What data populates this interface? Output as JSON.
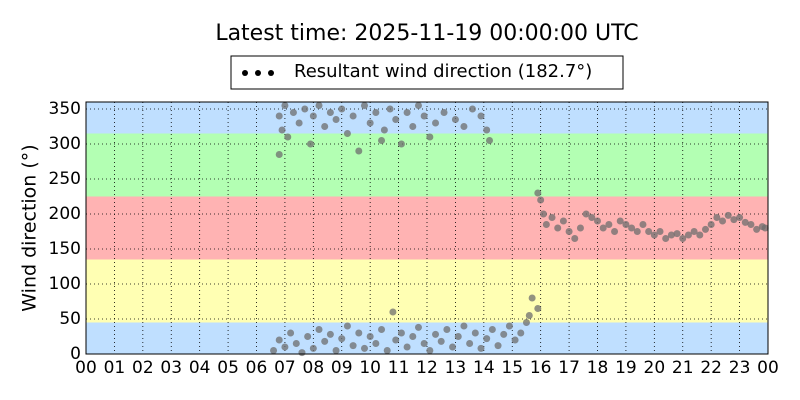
{
  "chart_data": {
    "type": "scatter",
    "title": "Latest time: 2025-11-19 00:00:00 UTC",
    "y_label": "Wind direction (°)",
    "x": [
      6.8,
      6.9,
      7.0,
      7.1,
      7.3,
      7.5,
      7.7,
      7.9,
      8.0,
      8.2,
      8.4,
      8.6,
      8.8,
      9.0,
      9.2,
      9.4,
      9.6,
      9.8,
      10.0,
      10.2,
      10.4,
      10.5,
      10.7,
      10.9,
      11.1,
      11.3,
      11.5,
      11.7,
      11.9,
      12.1,
      12.3,
      12.6,
      13.0,
      13.3,
      13.6,
      13.9,
      14.1,
      14.2,
      6.8,
      6.6,
      6.8,
      7.0,
      7.2,
      7.4,
      7.6,
      7.8,
      8.0,
      8.2,
      8.4,
      8.6,
      8.8,
      9.0,
      9.2,
      9.4,
      9.6,
      9.8,
      10.0,
      10.2,
      10.4,
      10.6,
      10.8,
      10.9,
      11.1,
      11.3,
      11.5,
      11.7,
      11.9,
      12.1,
      12.3,
      12.5,
      12.7,
      12.9,
      13.1,
      13.3,
      13.5,
      13.7,
      13.9,
      14.1,
      14.3,
      14.5,
      14.7,
      14.9,
      15.1,
      15.3,
      15.5,
      15.6,
      15.7,
      15.9,
      15.9,
      16.0,
      16.1,
      16.2,
      16.4,
      16.6,
      16.8,
      17.0,
      17.2,
      17.4,
      17.6,
      17.8,
      18.0,
      18.2,
      18.4,
      18.6,
      18.8,
      19.0,
      19.2,
      19.4,
      19.6,
      19.8,
      20.0,
      20.2,
      20.4,
      20.6,
      20.8,
      21.0,
      21.2,
      21.4,
      21.6,
      21.8,
      22.0,
      22.2,
      22.4,
      22.6,
      22.8,
      23.0,
      23.2,
      23.4,
      23.6,
      23.8,
      23.9
    ],
    "series": [
      {
        "name": "Resultant wind direction (182.7°)",
        "color": "#6e6e6e",
        "values": [
          340,
          320,
          355,
          310,
          345,
          330,
          350,
          300,
          340,
          355,
          325,
          345,
          335,
          350,
          315,
          340,
          290,
          355,
          330,
          345,
          305,
          320,
          350,
          335,
          300,
          345,
          325,
          355,
          340,
          310,
          330,
          345,
          335,
          325,
          350,
          340,
          320,
          305,
          285,
          5,
          20,
          10,
          30,
          15,
          2,
          25,
          8,
          35,
          18,
          28,
          5,
          22,
          40,
          12,
          30,
          8,
          25,
          15,
          35,
          5,
          60,
          20,
          30,
          10,
          25,
          38,
          15,
          5,
          28,
          18,
          35,
          10,
          25,
          40,
          15,
          30,
          8,
          22,
          35,
          12,
          28,
          40,
          20,
          30,
          45,
          55,
          80,
          65,
          230,
          220,
          200,
          185,
          195,
          180,
          190,
          175,
          165,
          180,
          200,
          195,
          190,
          180,
          185,
          175,
          190,
          185,
          180,
          175,
          185,
          175,
          170,
          175,
          165,
          170,
          172,
          165,
          170,
          175,
          170,
          178,
          185,
          195,
          190,
          198,
          192,
          195,
          188,
          185,
          178,
          182,
          180
        ]
      }
    ],
    "xlim": [
      0,
      24
    ],
    "xticks": [
      {
        "value": 0,
        "label": "00"
      },
      {
        "value": 1,
        "label": "01"
      },
      {
        "value": 2,
        "label": "02"
      },
      {
        "value": 3,
        "label": "03"
      },
      {
        "value": 4,
        "label": "04"
      },
      {
        "value": 5,
        "label": "05"
      },
      {
        "value": 6,
        "label": "06"
      },
      {
        "value": 7,
        "label": "07"
      },
      {
        "value": 8,
        "label": "08"
      },
      {
        "value": 9,
        "label": "09"
      },
      {
        "value": 10,
        "label": "10"
      },
      {
        "value": 11,
        "label": "11"
      },
      {
        "value": 12,
        "label": "12"
      },
      {
        "value": 13,
        "label": "13"
      },
      {
        "value": 14,
        "label": "14"
      },
      {
        "value": 15,
        "label": "15"
      },
      {
        "value": 16,
        "label": "16"
      },
      {
        "value": 17,
        "label": "17"
      },
      {
        "value": 18,
        "label": "18"
      },
      {
        "value": 19,
        "label": "19"
      },
      {
        "value": 20,
        "label": "20"
      },
      {
        "value": 21,
        "label": "21"
      },
      {
        "value": 22,
        "label": "22"
      },
      {
        "value": 23,
        "label": "23"
      },
      {
        "value": 24,
        "label": "00"
      }
    ],
    "ylim": [
      0,
      360
    ],
    "yticks": [
      0,
      50,
      100,
      150,
      200,
      250,
      300,
      350
    ],
    "grid": true,
    "bands": [
      {
        "from": 0,
        "to": 45,
        "color": "#bfdfff"
      },
      {
        "from": 45,
        "to": 135,
        "color": "#ffffb3"
      },
      {
        "from": 135,
        "to": 225,
        "color": "#ffb3b3"
      },
      {
        "from": 225,
        "to": 315,
        "color": "#b3ffb3"
      },
      {
        "from": 315,
        "to": 360,
        "color": "#bfdfff"
      }
    ],
    "legend": "top"
  }
}
